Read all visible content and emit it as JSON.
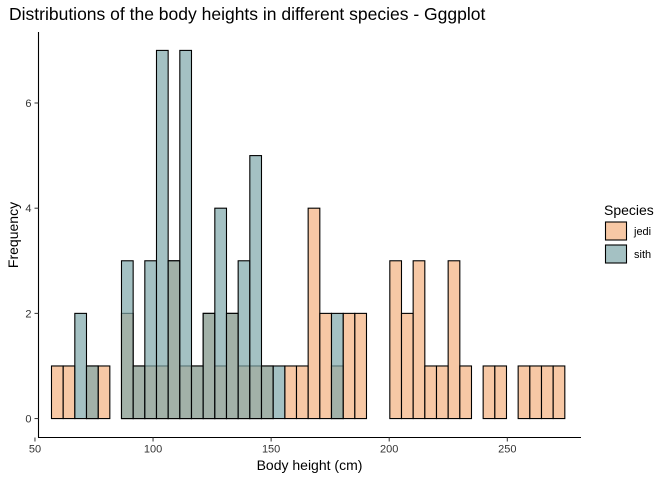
{
  "chart_data": {
    "type": "histogram",
    "title": "Distributions of the body heights in different species - Gggplot",
    "xlabel": "Body height (cm)",
    "ylabel": "Frequency",
    "xlim": [
      51.5,
      281.0
    ],
    "ylim": [
      -0.36,
      7.35
    ],
    "x_ticks": [
      50,
      100,
      150,
      200,
      250
    ],
    "y_ticks": [
      0,
      2,
      4,
      6
    ],
    "grid": false,
    "bin_width": 4.94,
    "bins_start": 57.0,
    "legend": {
      "title": "Species",
      "placement": "right"
    },
    "series": [
      {
        "name": "jedi",
        "color": "#f4b07f",
        "alpha": 0.7,
        "values": [
          1,
          1,
          0,
          1,
          1,
          0,
          2,
          1,
          1,
          1,
          3,
          1,
          1,
          2,
          1,
          2,
          1,
          1,
          1,
          0,
          1,
          1,
          4,
          2,
          1,
          2,
          2,
          0,
          0,
          3,
          2,
          3,
          1,
          1,
          3,
          1,
          0,
          1,
          1,
          0,
          1,
          1,
          1,
          1
        ]
      },
      {
        "name": "sith",
        "color": "#7da7aa",
        "alpha": 0.7,
        "values": [
          0,
          0,
          2,
          1,
          0,
          0,
          3,
          1,
          3,
          7,
          3,
          7,
          1,
          2,
          4,
          2,
          3,
          5,
          1,
          1,
          0,
          0,
          0,
          0,
          2
        ]
      }
    ]
  }
}
